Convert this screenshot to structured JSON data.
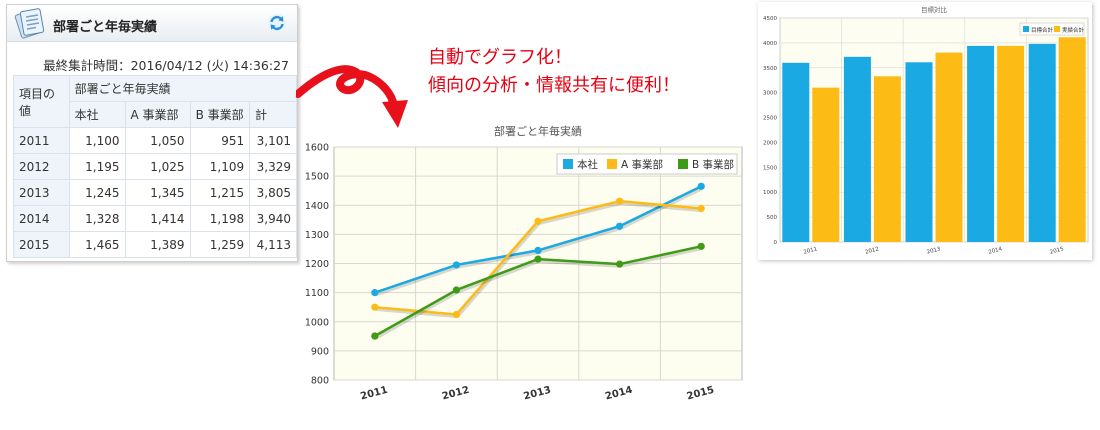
{
  "widget": {
    "title": "部署ごと年毎実績",
    "timestamp_label": "最終集計時間：",
    "timestamp_value": "2016/04/12 (火) 14:36:27",
    "table": {
      "corner_label": "項目の値",
      "group_label": "部署ごと年毎実績",
      "columns": [
        "本社",
        "A 事業部",
        "B 事業部",
        "計"
      ],
      "rows": [
        {
          "year": "2011",
          "values": [
            "1,100",
            "1,050",
            "951",
            "3,101"
          ]
        },
        {
          "year": "2012",
          "values": [
            "1,195",
            "1,025",
            "1,109",
            "3,329"
          ]
        },
        {
          "year": "2013",
          "values": [
            "1,245",
            "1,345",
            "1,215",
            "3,805"
          ]
        },
        {
          "year": "2014",
          "values": [
            "1,328",
            "1,414",
            "1,198",
            "3,940"
          ]
        },
        {
          "year": "2015",
          "values": [
            "1,465",
            "1,389",
            "1,259",
            "4,113"
          ]
        }
      ]
    }
  },
  "annotation": {
    "line1": "自動でグラフ化！",
    "line2": "傾向の分析・情報共有に便利！"
  },
  "colors": {
    "series_blue": "#1aa9e3",
    "series_orange": "#fdbb16",
    "series_green": "#3d9b16",
    "annotation_red": "#e60012",
    "arrow_red": "#e8101b"
  },
  "icons": [
    "document-icon",
    "refresh-icon"
  ],
  "chart_data": [
    {
      "type": "line",
      "title": "部署ごと年毎実績",
      "categories": [
        "2011",
        "2012",
        "2013",
        "2014",
        "2015"
      ],
      "ylim": [
        800,
        1600
      ],
      "yticks": [
        "800",
        "900",
        "1000",
        "1100",
        "1200",
        "1300",
        "1400",
        "1500",
        "1600"
      ],
      "grid": true,
      "legend_position": "top-right",
      "series": [
        {
          "name": "本社",
          "values": [
            1100,
            1195,
            1245,
            1328,
            1465
          ],
          "color": "#1aa9e3"
        },
        {
          "name": "A 事業部",
          "values": [
            1050,
            1025,
            1345,
            1414,
            1389
          ],
          "color": "#fdbb16"
        },
        {
          "name": "B 事業部",
          "values": [
            951,
            1109,
            1215,
            1198,
            1259
          ],
          "color": "#3d9b16"
        }
      ]
    },
    {
      "type": "bar",
      "title": "目標対比",
      "categories": [
        "2011",
        "2012",
        "2013",
        "2014",
        "2015"
      ],
      "ylim": [
        0,
        4500
      ],
      "yticks": [
        "0",
        "500",
        "1000",
        "1500",
        "2000",
        "2500",
        "3000",
        "3500",
        "4000",
        "4500"
      ],
      "grid": true,
      "legend_position": "top-right",
      "series": [
        {
          "name": "目標合計",
          "values": [
            3600,
            3720,
            3610,
            3940,
            3980
          ],
          "color": "#1aa9e3"
        },
        {
          "name": "実績合計",
          "values": [
            3101,
            3329,
            3805,
            3940,
            4113
          ],
          "color": "#fdbb16"
        }
      ]
    }
  ]
}
